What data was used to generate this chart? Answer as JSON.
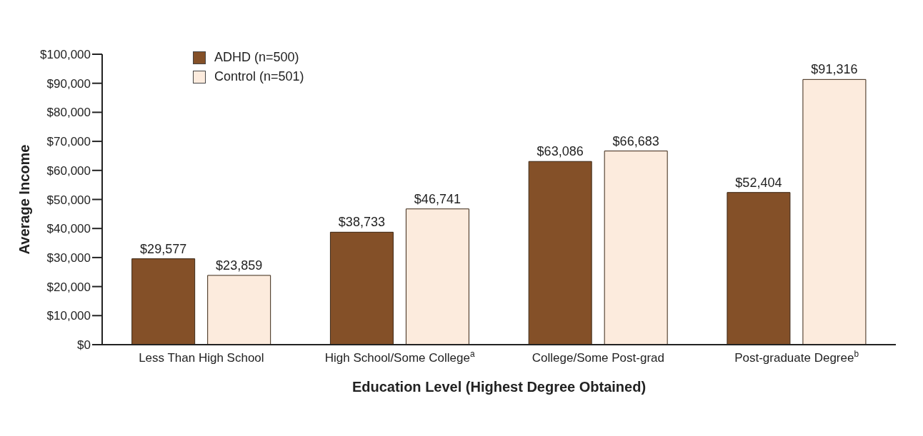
{
  "chart_data": {
    "type": "bar",
    "xlabel": "Education Level (Highest Degree Obtained)",
    "ylabel": "Average Income",
    "categories": [
      "Less Than High School",
      "High School/Some College$^{a}$",
      "College/Some Post-grad",
      "Post-graduate Degree$^{b}$"
    ],
    "series": [
      {
        "name": "ADHD (n=500)",
        "color": "#845028",
        "values": [
          29577,
          38733,
          63086,
          52404
        ],
        "value_labels": [
          "$29,577",
          "$38,733",
          "$63,086",
          "$52,404"
        ]
      },
      {
        "name": "Control (n=501)",
        "color": "#fcebdd",
        "values": [
          23859,
          46741,
          66683,
          91316
        ],
        "value_labels": [
          "$23,859",
          "$46,741",
          "$66,683",
          "$91,316"
        ]
      }
    ],
    "ylim": [
      0,
      100000
    ],
    "yticks": [
      {
        "value": 0,
        "label": "$0"
      },
      {
        "value": 10000,
        "label": "$10,000"
      },
      {
        "value": 20000,
        "label": "$20,000"
      },
      {
        "value": 30000,
        "label": "$30,000"
      },
      {
        "value": 40000,
        "label": "$40,000"
      },
      {
        "value": 50000,
        "label": "$50,000"
      },
      {
        "value": 60000,
        "label": "$60,000"
      },
      {
        "value": 70000,
        "label": "$70,000"
      },
      {
        "value": 80000,
        "label": "$80,000"
      },
      {
        "value": 90000,
        "label": "$90,000"
      },
      {
        "value": 100000,
        "label": "$100,000"
      }
    ],
    "grid": false,
    "legend": "top left"
  }
}
